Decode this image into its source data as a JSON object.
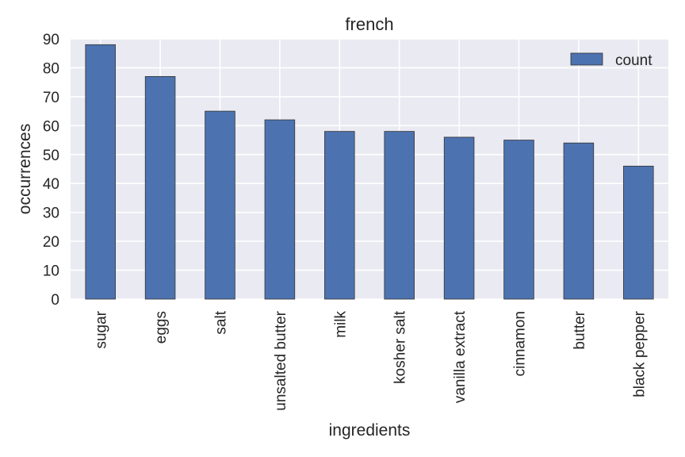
{
  "chart_data": {
    "type": "bar",
    "title": "french",
    "xlabel": "ingredients",
    "ylabel": "occurrences",
    "categories": [
      "sugar",
      "eggs",
      "salt",
      "unsalted butter",
      "milk",
      "kosher salt",
      "vanilla extract",
      "cinnamon",
      "butter",
      "black pepper"
    ],
    "series": [
      {
        "name": "count",
        "values": [
          88,
          77,
          65,
          62,
          58,
          58,
          56,
          55,
          54,
          46
        ]
      }
    ],
    "ylim": [
      0,
      90
    ],
    "yticks": [
      0,
      10,
      20,
      30,
      40,
      50,
      60,
      70,
      80,
      90
    ],
    "grid": true,
    "legend_position": "top-right",
    "colors": {
      "bar": "#4c72b0",
      "plot_background": "#eaeaf2",
      "grid": "#ffffff",
      "text": "#262626"
    }
  }
}
